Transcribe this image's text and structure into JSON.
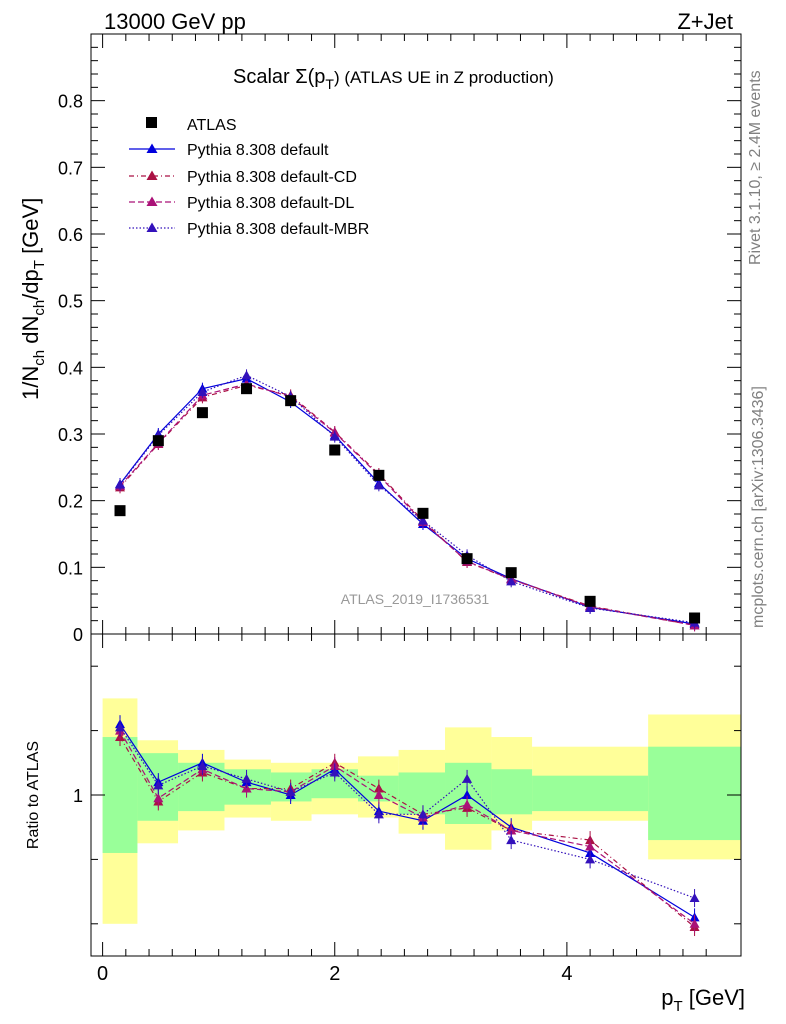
{
  "header": {
    "left": "13000 GeV pp",
    "right": "Z+Jet"
  },
  "side_labels": {
    "rivet": "Rivet 3.1.10, ≥ 2.4M events",
    "mcplots": "mcplots.cern.ch [arXiv:1306.3436]"
  },
  "watermark": "ATLAS_2019_I1736531",
  "colors": {
    "data": "#000000",
    "default": "#0000dd",
    "cd": "#aa1144",
    "dl": "#aa1177",
    "mbr": "#3311bb",
    "band_inner": "#99ff99",
    "band_outer": "#ffff99"
  },
  "chart_data": [
    {
      "type": "line",
      "title": "Scalar Σ(pT) (ATLAS UE in Z production)",
      "title_main": "Scalar Σ(p",
      "title_sub": "T",
      "title_rest": ") (ATLAS UE in Z production)",
      "ylabel": "1/Nch dNch/dpT [GeV]",
      "ylim": [
        0,
        0.9
      ],
      "xlim": [
        -0.1,
        5.5
      ],
      "y_ticks": [
        "0",
        "0.1",
        "0.2",
        "0.3",
        "0.4",
        "0.5",
        "0.6",
        "0.7",
        "0.8"
      ],
      "legend_position": "top-left",
      "legend": [
        "ATLAS",
        "Pythia 8.308 default",
        "Pythia 8.308 default-CD",
        "Pythia 8.308 default-DL",
        "Pythia 8.308 default-MBR"
      ],
      "x": [
        0.15,
        0.48,
        0.86,
        1.24,
        1.62,
        2.0,
        2.38,
        2.76,
        3.14,
        3.52,
        4.2,
        5.1
      ],
      "x_lo": [
        0.0,
        0.3,
        0.65,
        1.05,
        1.45,
        1.8,
        2.2,
        2.55,
        2.95,
        3.35,
        3.7,
        4.7
      ],
      "x_hi": [
        0.3,
        0.65,
        1.05,
        1.45,
        1.8,
        2.2,
        2.55,
        2.95,
        3.35,
        3.7,
        4.7,
        5.5
      ],
      "data": [
        0.185,
        0.29,
        0.332,
        0.368,
        0.35,
        0.276,
        0.238,
        0.181,
        0.113,
        0.092,
        0.049,
        0.024
      ],
      "series": [
        {
          "name": "Pythia 8.308 default",
          "values": [
            0.225,
            0.3,
            0.368,
            0.383,
            0.348,
            0.298,
            0.226,
            0.165,
            0.113,
            0.083,
            0.04,
            0.015
          ]
        },
        {
          "name": "Pythia 8.308 default-CD",
          "values": [
            0.22,
            0.285,
            0.355,
            0.373,
            0.358,
            0.303,
            0.24,
            0.17,
            0.108,
            0.082,
            0.042,
            0.013
          ]
        },
        {
          "name": "Pythia 8.308 default-DL",
          "values": [
            0.222,
            0.286,
            0.358,
            0.375,
            0.356,
            0.302,
            0.238,
            0.168,
            0.109,
            0.082,
            0.041,
            0.013
          ]
        },
        {
          "name": "Pythia 8.308 default-MBR",
          "values": [
            0.224,
            0.298,
            0.363,
            0.388,
            0.356,
            0.296,
            0.223,
            0.17,
            0.118,
            0.079,
            0.039,
            0.017
          ]
        }
      ]
    },
    {
      "type": "line",
      "ylabel": "Ratio to ATLAS",
      "xlabel": "pT [GeV]",
      "xlabel_main": "p",
      "xlabel_sub": "T",
      "xlabel_rest": " [GeV]",
      "y_ticks": [
        "1"
      ],
      "x_ticks": [
        "0",
        "2",
        "4"
      ],
      "ylim": [
        0.5,
        1.5
      ],
      "band_inner": [
        [
          0.82,
          1.18
        ],
        [
          0.92,
          1.13
        ],
        [
          0.95,
          1.1
        ],
        [
          0.97,
          1.08
        ],
        [
          0.98,
          1.07
        ],
        [
          0.99,
          1.08
        ],
        [
          0.98,
          1.06
        ],
        [
          0.94,
          1.07
        ],
        [
          0.91,
          1.1
        ],
        [
          0.94,
          1.08
        ],
        [
          0.95,
          1.06
        ],
        [
          0.86,
          1.15
        ]
      ],
      "band_outer": [
        [
          0.6,
          1.3
        ],
        [
          0.85,
          1.17
        ],
        [
          0.89,
          1.14
        ],
        [
          0.93,
          1.11
        ],
        [
          0.92,
          1.1
        ],
        [
          0.94,
          1.1
        ],
        [
          0.93,
          1.12
        ],
        [
          0.88,
          1.14
        ],
        [
          0.83,
          1.21
        ],
        [
          0.89,
          1.18
        ],
        [
          0.92,
          1.15
        ],
        [
          0.8,
          1.25
        ]
      ],
      "series": [
        {
          "name": "Pythia 8.308 default",
          "values": [
            1.22,
            1.04,
            1.1,
            1.04,
            1.0,
            1.08,
            0.95,
            0.92,
            1.0,
            0.9,
            0.82,
            0.62
          ]
        },
        {
          "name": "Pythia 8.308 default-CD",
          "values": [
            1.18,
            0.98,
            1.07,
            1.02,
            1.02,
            1.1,
            1.02,
            0.94,
            0.96,
            0.89,
            0.86,
            0.59
          ]
        },
        {
          "name": "Pythia 8.308 default-DL",
          "values": [
            1.2,
            0.99,
            1.08,
            1.02,
            1.01,
            1.09,
            1.0,
            0.93,
            0.97,
            0.89,
            0.84,
            0.6
          ]
        },
        {
          "name": "Pythia 8.308 default-MBR",
          "values": [
            1.21,
            1.03,
            1.09,
            1.05,
            1.01,
            1.07,
            0.94,
            0.94,
            1.05,
            0.86,
            0.8,
            0.68
          ]
        }
      ]
    }
  ]
}
